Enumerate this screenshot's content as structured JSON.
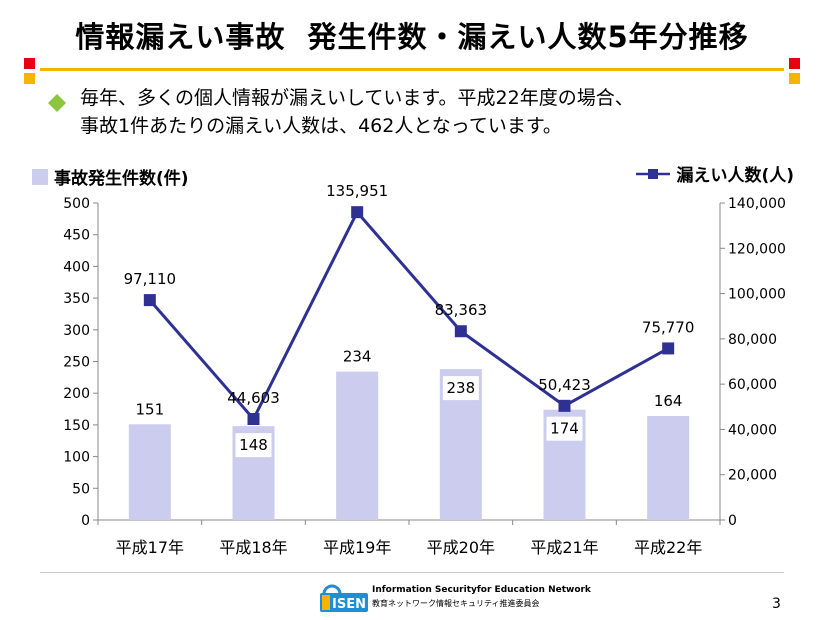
{
  "slide": {
    "title": "情報漏えい事故  発生件数・漏えい人数5年分推移",
    "description": "毎年、多くの個人情報が漏えいしています。平成22年度の場合、\n事故1件あたりの漏えい人数は、462人となっています。",
    "page_number": "3",
    "colors": {
      "accent": "#f5b400",
      "corner_red": "#e60012",
      "corner_yellow": "#f5b400",
      "bullet": "#8cc63f"
    }
  },
  "footer": {
    "logo_text": "ISEN",
    "logo_en": "Information Securityfor Education Network",
    "logo_jp": "教育ネットワーク情報セキュリティ推進委員会"
  },
  "chart_data": {
    "type": "bar",
    "categories": [
      "平成17年",
      "平成18年",
      "平成19年",
      "平成20年",
      "平成21年",
      "平成22年"
    ],
    "series": [
      {
        "name": "事故発生件数(件)",
        "type": "bar",
        "axis": "left",
        "color": "#ccccee",
        "values": [
          151,
          148,
          234,
          238,
          174,
          164
        ],
        "labels": [
          "151",
          "148",
          "234",
          "238",
          "174",
          "164"
        ]
      },
      {
        "name": "漏えい人数(人)",
        "type": "line",
        "axis": "right",
        "color": "#2e3192",
        "values": [
          97110,
          44603,
          135951,
          83363,
          50423,
          75770
        ],
        "labels": [
          "97,110",
          "44,603",
          "135,951",
          "83,363",
          "50,423",
          "75,770"
        ]
      }
    ],
    "y_left": {
      "min": 0,
      "max": 500,
      "step": 50,
      "ticks": [
        "0",
        "50",
        "100",
        "150",
        "200",
        "250",
        "300",
        "350",
        "400",
        "450",
        "500"
      ]
    },
    "y_right": {
      "min": 0,
      "max": 140000,
      "step": 20000,
      "ticks": [
        "0",
        "20,000",
        "40,000",
        "60,000",
        "80,000",
        "100,000",
        "120,000",
        "140,000"
      ]
    },
    "grid": false,
    "legend": {
      "left": "top-left",
      "right": "top-right"
    }
  }
}
